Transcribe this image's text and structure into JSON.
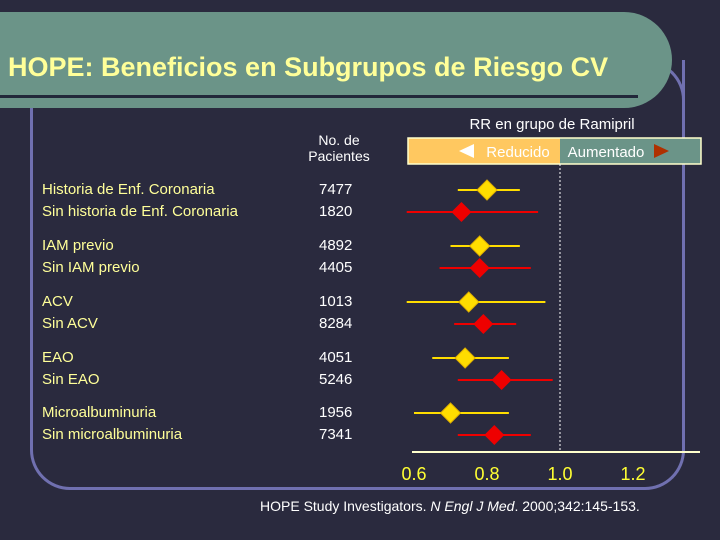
{
  "title": "HOPE: Beneficios en Subgrupos de Riesgo CV",
  "patients_header": "No. de Pacientes",
  "citation": {
    "prefix": "HOPE Study Investigators. ",
    "journal": "N Engl J Med",
    "suffix": ". 2000;342:145-153."
  },
  "colors": {
    "background": "#2a2a3e",
    "band": "#6b9488",
    "title": "#ffff99",
    "yes": "#ffdd00",
    "no": "#ee0000",
    "reduced": "#ffc860",
    "increased": "#6b9488"
  },
  "chart_data": {
    "type": "forest",
    "title": "RR en grupo de Ramipril",
    "legend": {
      "reduced": "Reducido",
      "increased": "Aumentado"
    },
    "xlim": [
      0.6,
      1.39
    ],
    "xticks": [
      "0.6",
      "0.8",
      "1.0",
      "1.2"
    ],
    "reference_line": 1.0,
    "rows": [
      {
        "label": "Historia de Enf. Coronaria",
        "n": "7477",
        "rr": 0.8,
        "lo": 0.72,
        "hi": 0.89
      },
      {
        "label": "Sin historia de Enf. Coronaria",
        "n": "1820",
        "rr": 0.73,
        "lo": 0.58,
        "hi": 0.94
      },
      {
        "label": "IAM previo",
        "n": "4892",
        "rr": 0.78,
        "lo": 0.7,
        "hi": 0.89
      },
      {
        "label": "Sin IAM previo",
        "n": "4405",
        "rr": 0.78,
        "lo": 0.67,
        "hi": 0.92
      },
      {
        "label": "ACV",
        "n": "1013",
        "rr": 0.75,
        "lo": 0.58,
        "hi": 0.96
      },
      {
        "label": "Sin ACV",
        "n": "8284",
        "rr": 0.79,
        "lo": 0.71,
        "hi": 0.88
      },
      {
        "label": "EAO",
        "n": "4051",
        "rr": 0.74,
        "lo": 0.65,
        "hi": 0.86
      },
      {
        "label": "Sin EAO",
        "n": "5246",
        "rr": 0.84,
        "lo": 0.72,
        "hi": 0.98
      },
      {
        "label": "Microalbuminuria",
        "n": "1956",
        "rr": 0.7,
        "lo": 0.6,
        "hi": 0.86
      },
      {
        "label": "Sin microalbuminuria",
        "n": "7341",
        "rr": 0.82,
        "lo": 0.72,
        "hi": 0.92
      }
    ]
  }
}
